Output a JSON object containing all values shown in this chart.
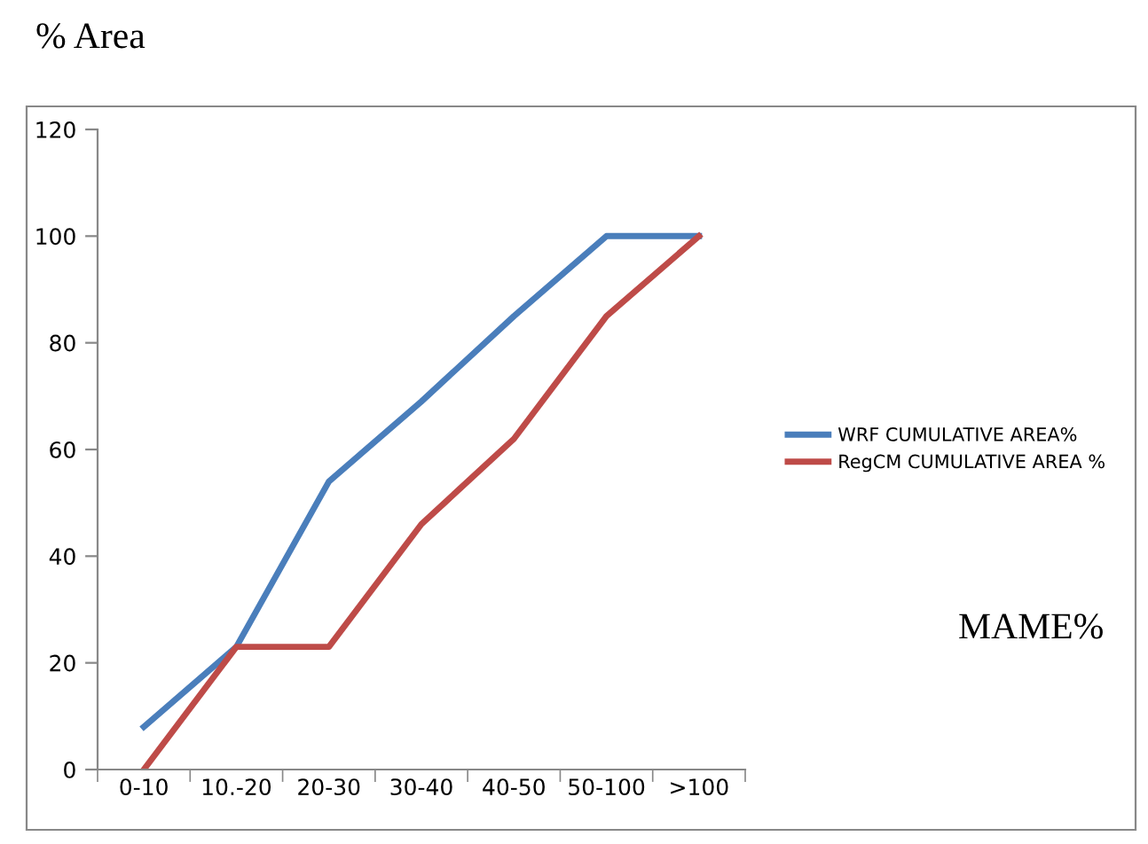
{
  "chart_data": {
    "type": "line",
    "ylabel": "% Area",
    "annotations": [
      "MAME%"
    ],
    "categories": [
      "0-10",
      "10.-20",
      "20-30",
      "30-40",
      "40-50",
      "50-100",
      ">100"
    ],
    "series": [
      {
        "name": "WRF CUMULATIVE AREA%",
        "color": "#4a7ebb",
        "values": [
          8,
          23,
          54,
          69,
          85,
          100,
          100
        ]
      },
      {
        "name": "RegCM CUMULATIVE AREA %",
        "color": "#be4b48",
        "values": [
          0,
          23,
          23,
          46,
          62,
          85,
          100
        ]
      }
    ],
    "ylim": [
      0,
      120
    ],
    "yticks": [
      0,
      20,
      40,
      60,
      80,
      100,
      120
    ],
    "grid": false,
    "legend": "right",
    "marker": "none",
    "line_style": "solid"
  }
}
